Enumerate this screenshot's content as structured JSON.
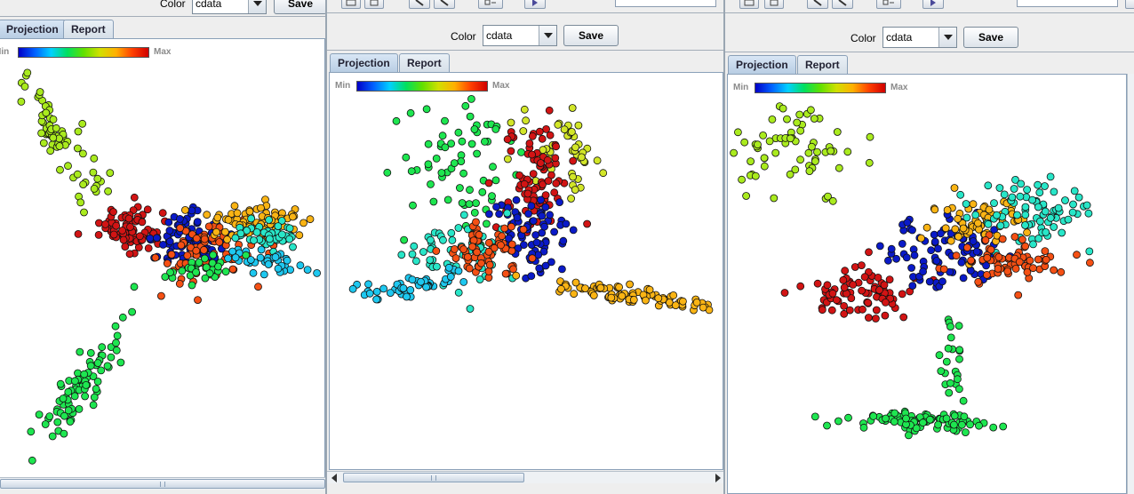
{
  "toolbar": {
    "color_label": "Color",
    "color_value": "cdata",
    "save_label": "Save"
  },
  "tabs": {
    "projection": "Projection",
    "report": "Report"
  },
  "legend": {
    "min": "Min",
    "max": "Max"
  },
  "colormap": [
    "#0000c8",
    "#0060ff",
    "#00d0ff",
    "#00e060",
    "#60e000",
    "#d0e000",
    "#ffb000",
    "#ff4000",
    "#d00000"
  ],
  "colors": {
    "blue": "#0a1ac8",
    "cyan": "#1ec8f0",
    "teal": "#28e6c8",
    "green": "#1ee650",
    "lime": "#aaeb1e",
    "yellow": "#d2e628",
    "orange": "#fab414",
    "redorange": "#f55014",
    "red": "#d21414"
  },
  "plots": [
    {
      "name": "projection-1",
      "clusters": [
        {
          "c": "lime",
          "n": 70,
          "cx": 65,
          "cy": 110,
          "sx": 45,
          "sy": 45,
          "dir": [
            0.6,
            1
          ]
        },
        {
          "c": "red",
          "n": 80,
          "cx": 145,
          "cy": 215,
          "sx": 16,
          "sy": 12
        },
        {
          "c": "blue",
          "n": 90,
          "cx": 215,
          "cy": 225,
          "sx": 22,
          "sy": 14
        },
        {
          "c": "redorange",
          "n": 80,
          "cx": 240,
          "cy": 240,
          "sx": 30,
          "sy": 18
        },
        {
          "c": "orange",
          "n": 80,
          "cx": 290,
          "cy": 205,
          "sx": 28,
          "sy": 10
        },
        {
          "c": "teal",
          "n": 40,
          "cx": 305,
          "cy": 220,
          "sx": 20,
          "sy": 8
        },
        {
          "c": "cyan",
          "n": 40,
          "cx": 300,
          "cy": 250,
          "sx": 30,
          "sy": 10
        },
        {
          "c": "green",
          "n": 80,
          "cx": 90,
          "cy": 390,
          "sx": 40,
          "sy": 45,
          "dir": [
            -0.8,
            1
          ]
        },
        {
          "c": "green",
          "n": 30,
          "cx": 225,
          "cy": 260,
          "sx": 18,
          "sy": 8
        }
      ]
    },
    {
      "name": "projection-2",
      "clusters": [
        {
          "c": "green",
          "n": 70,
          "cx": 150,
          "cy": 100,
          "sx": 35,
          "sy": 40
        },
        {
          "c": "yellow",
          "n": 50,
          "cx": 260,
          "cy": 90,
          "sx": 25,
          "sy": 25
        },
        {
          "c": "red",
          "n": 80,
          "cx": 235,
          "cy": 120,
          "sx": 18,
          "sy": 30
        },
        {
          "c": "blue",
          "n": 80,
          "cx": 220,
          "cy": 180,
          "sx": 22,
          "sy": 25
        },
        {
          "c": "teal",
          "n": 60,
          "cx": 140,
          "cy": 200,
          "sx": 30,
          "sy": 20
        },
        {
          "c": "redorange",
          "n": 60,
          "cx": 175,
          "cy": 200,
          "sx": 22,
          "sy": 15
        },
        {
          "c": "cyan",
          "n": 50,
          "cx": 90,
          "cy": 240,
          "sx": 40,
          "sy": 20,
          "dir": [
            -1,
            0.4
          ]
        },
        {
          "c": "orange",
          "n": 90,
          "cx": 340,
          "cy": 250,
          "sx": 50,
          "sy": 20,
          "dir": [
            1,
            0.35
          ]
        }
      ]
    },
    {
      "name": "projection-3",
      "clusters": [
        {
          "c": "lime",
          "n": 70,
          "cx": 75,
          "cy": 85,
          "sx": 38,
          "sy": 28
        },
        {
          "c": "red",
          "n": 80,
          "cx": 150,
          "cy": 245,
          "sx": 32,
          "sy": 14
        },
        {
          "c": "blue",
          "n": 90,
          "cx": 250,
          "cy": 200,
          "sx": 35,
          "sy": 22
        },
        {
          "c": "orange",
          "n": 60,
          "cx": 285,
          "cy": 165,
          "sx": 25,
          "sy": 14
        },
        {
          "c": "teal",
          "n": 80,
          "cx": 345,
          "cy": 155,
          "sx": 35,
          "sy": 18
        },
        {
          "c": "redorange",
          "n": 70,
          "cx": 320,
          "cy": 210,
          "sx": 30,
          "sy": 12
        },
        {
          "c": "green",
          "n": 80,
          "cx": 215,
          "cy": 390,
          "sx": 40,
          "sy": 20,
          "dir": [
            1,
            0.1
          ]
        },
        {
          "c": "green",
          "n": 25,
          "cx": 250,
          "cy": 330,
          "sx": 8,
          "sy": 30
        }
      ]
    }
  ]
}
